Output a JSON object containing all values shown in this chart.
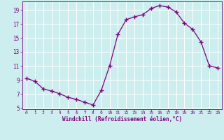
{
  "x": [
    0,
    1,
    2,
    3,
    4,
    5,
    6,
    7,
    8,
    9,
    10,
    11,
    12,
    13,
    14,
    15,
    16,
    17,
    18,
    19,
    20,
    21,
    22,
    23
  ],
  "y": [
    9.2,
    8.8,
    7.7,
    7.4,
    7.0,
    6.5,
    6.2,
    5.8,
    5.4,
    7.5,
    11.0,
    15.5,
    17.6,
    18.0,
    18.3,
    19.2,
    19.6,
    19.4,
    18.7,
    17.1,
    16.2,
    14.4,
    11.0,
    10.7
  ],
  "line_color": "#800080",
  "marker": "+",
  "markersize": 4,
  "linewidth": 0.9,
  "background_color": "#cceeee",
  "grid_color": "#ffffff",
  "xlabel": "Windchill (Refroidissement éolien,°C)",
  "xlabel_color": "#800080",
  "tick_color": "#800080",
  "label_color": "#800080",
  "xlim": [
    -0.5,
    23.5
  ],
  "ylim": [
    4.8,
    20.2
  ],
  "yticks": [
    5,
    7,
    9,
    11,
    13,
    15,
    17,
    19
  ],
  "xticks": [
    0,
    1,
    2,
    3,
    4,
    5,
    6,
    7,
    8,
    9,
    10,
    11,
    12,
    13,
    14,
    15,
    16,
    17,
    18,
    19,
    20,
    21,
    22,
    23
  ],
  "figsize": [
    3.2,
    2.0
  ],
  "dpi": 100
}
